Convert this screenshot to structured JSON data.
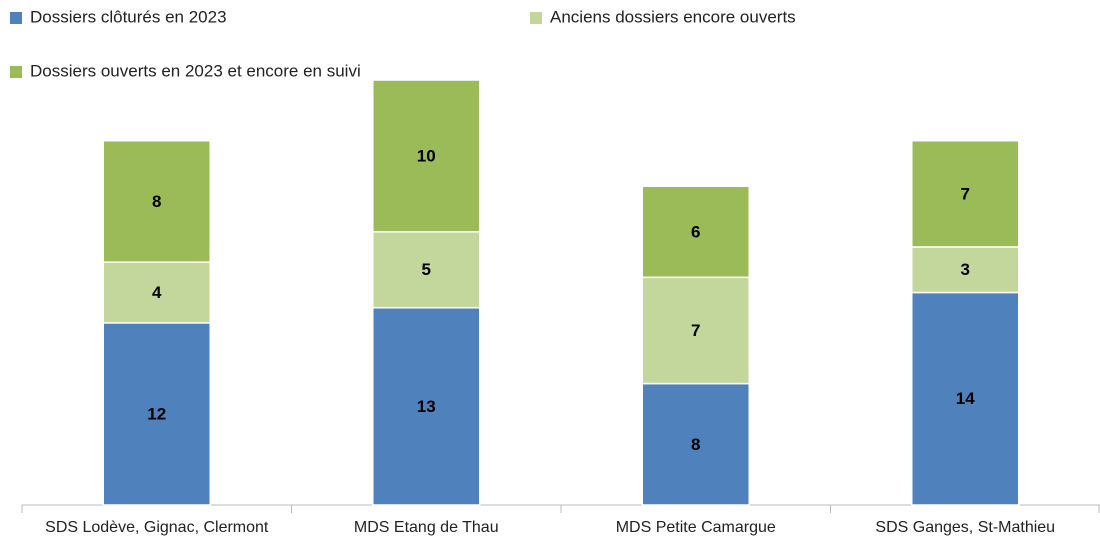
{
  "chart_data": {
    "type": "stacked_bar",
    "categories": [
      "SDS Lodève, Gignac, Clermont",
      "MDS Etang de Thau",
      "MDS Petite Camargue",
      "SDS Ganges, St-Mathieu"
    ],
    "series": [
      {
        "name": "Dossiers clôturés en 2023",
        "color": "#4f81bd",
        "values": [
          12,
          13,
          8,
          14
        ]
      },
      {
        "name": "Anciens dossiers encore ouverts",
        "color": "#c3d69b",
        "values": [
          4,
          5,
          7,
          3
        ]
      },
      {
        "name": "Dossiers ouverts en 2023 et encore en suivi",
        "color": "#9bbb59",
        "values": [
          8,
          10,
          6,
          7
        ]
      }
    ]
  }
}
